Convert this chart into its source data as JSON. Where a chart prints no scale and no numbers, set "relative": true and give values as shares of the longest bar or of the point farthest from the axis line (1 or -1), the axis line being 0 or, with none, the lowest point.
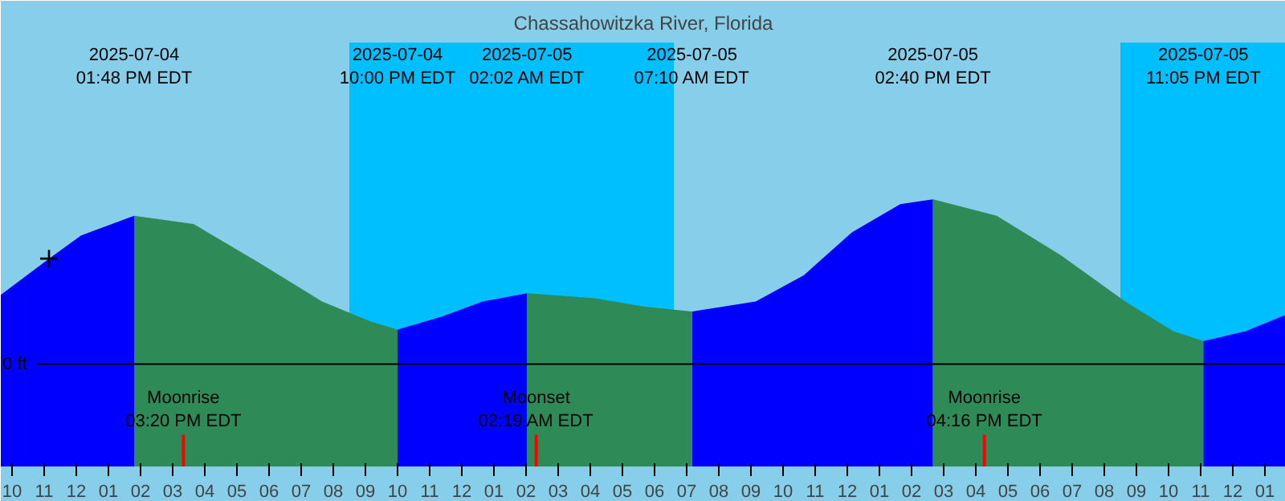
{
  "chart_data": {
    "type": "area",
    "title": "Chassahowitzka River, Florida",
    "relative": true,
    "grid": false,
    "xlim": [
      "2025-07-04T09:39",
      "2025-07-06T01:39"
    ],
    "xticks": [
      {
        "value": "2025-07-04T10:00",
        "label": "10"
      },
      {
        "value": "2025-07-04T11:00",
        "label": "11"
      },
      {
        "value": "2025-07-04T12:00",
        "label": "12"
      },
      {
        "value": "2025-07-04T13:00",
        "label": "01"
      },
      {
        "value": "2025-07-04T14:00",
        "label": "02"
      },
      {
        "value": "2025-07-04T15:00",
        "label": "03"
      },
      {
        "value": "2025-07-04T16:00",
        "label": "04"
      },
      {
        "value": "2025-07-04T17:00",
        "label": "05"
      },
      {
        "value": "2025-07-04T18:00",
        "label": "06"
      },
      {
        "value": "2025-07-04T19:00",
        "label": "07"
      },
      {
        "value": "2025-07-04T20:00",
        "label": "08"
      },
      {
        "value": "2025-07-04T21:00",
        "label": "09"
      },
      {
        "value": "2025-07-04T22:00",
        "label": "10"
      },
      {
        "value": "2025-07-04T23:00",
        "label": "11"
      },
      {
        "value": "2025-07-05T00:00",
        "label": "12"
      },
      {
        "value": "2025-07-05T01:00",
        "label": "01"
      },
      {
        "value": "2025-07-05T02:00",
        "label": "02"
      },
      {
        "value": "2025-07-05T03:00",
        "label": "03"
      },
      {
        "value": "2025-07-05T04:00",
        "label": "04"
      },
      {
        "value": "2025-07-05T05:00",
        "label": "05"
      },
      {
        "value": "2025-07-05T06:00",
        "label": "06"
      },
      {
        "value": "2025-07-05T07:00",
        "label": "07"
      },
      {
        "value": "2025-07-05T08:00",
        "label": "08"
      },
      {
        "value": "2025-07-05T09:00",
        "label": "09"
      },
      {
        "value": "2025-07-05T10:00",
        "label": "10"
      },
      {
        "value": "2025-07-05T11:00",
        "label": "11"
      },
      {
        "value": "2025-07-05T12:00",
        "label": "12"
      },
      {
        "value": "2025-07-05T13:00",
        "label": "01"
      },
      {
        "value": "2025-07-05T14:00",
        "label": "02"
      },
      {
        "value": "2025-07-05T15:00",
        "label": "03"
      },
      {
        "value": "2025-07-05T16:00",
        "label": "04"
      },
      {
        "value": "2025-07-05T17:00",
        "label": "05"
      },
      {
        "value": "2025-07-05T18:00",
        "label": "06"
      },
      {
        "value": "2025-07-05T19:00",
        "label": "07"
      },
      {
        "value": "2025-07-05T20:00",
        "label": "08"
      },
      {
        "value": "2025-07-05T21:00",
        "label": "09"
      },
      {
        "value": "2025-07-05T22:00",
        "label": "10"
      },
      {
        "value": "2025-07-05T23:00",
        "label": "11"
      },
      {
        "value": "2025-07-06T00:00",
        "label": "12"
      },
      {
        "value": "2025-07-06T01:00",
        "label": "01"
      }
    ],
    "x": [
      "2025-07-04T09:39",
      "2025-07-04T11:09",
      "2025-07-04T12:09",
      "2025-07-04T13:48",
      "2025-07-04T15:39",
      "2025-07-04T17:39",
      "2025-07-04T19:39",
      "2025-07-04T21:09",
      "2025-07-04T22:00",
      "2025-07-04T23:24",
      "2025-07-05T00:39",
      "2025-07-05T02:02",
      "2025-07-05T04:09",
      "2025-07-05T05:39",
      "2025-07-05T07:10",
      "2025-07-05T09:09",
      "2025-07-05T10:39",
      "2025-07-05T12:09",
      "2025-07-05T13:39",
      "2025-07-05T14:40",
      "2025-07-05T16:39",
      "2025-07-05T18:39",
      "2025-07-05T20:39",
      "2025-07-05T22:09",
      "2025-07-05T23:05",
      "2025-07-06T00:24",
      "2025-07-06T01:39"
    ],
    "series": [
      {
        "color": "#0000ff",
        "values": [
          0.42,
          0.64,
          0.78,
          0.9,
          null,
          null,
          null,
          null,
          0.21,
          0.29,
          0.38,
          0.43,
          null,
          null,
          0.32,
          0.38,
          0.54,
          0.8,
          0.97,
          1.0,
          null,
          null,
          null,
          null,
          0.14,
          0.2,
          0.3
        ]
      },
      {
        "color": "#2e8b57",
        "values": [
          null,
          null,
          null,
          0.9,
          0.85,
          0.62,
          0.38,
          0.26,
          0.21,
          null,
          null,
          0.43,
          0.4,
          0.35,
          0.32,
          null,
          null,
          null,
          null,
          1.0,
          0.9,
          0.66,
          0.38,
          0.2,
          0.14,
          null,
          null
        ]
      },
      {
        "type": "scatter",
        "marker": "cross",
        "color": "#000000",
        "x": [
          "2025-07-04T11:09"
        ],
        "values": [
          0.64
        ]
      }
    ],
    "bands": [
      {
        "axis": "x",
        "from": "2025-07-04T20:30",
        "to": "2025-07-05T06:36",
        "color": "#00bfff"
      },
      {
        "axis": "x",
        "from": "2025-07-05T20:30",
        "to": "2025-07-06T01:39",
        "color": "#00bfff"
      }
    ],
    "ref_lines": [
      {
        "axis": "y",
        "value": 0,
        "label": "0 ft",
        "color": "#000000"
      },
      {
        "axis": "x",
        "value": "2025-07-04T15:20",
        "label": "Moonrise\n03:20 PM EDT",
        "color": "#ff0000"
      },
      {
        "axis": "x",
        "value": "2025-07-05T02:19",
        "label": "Moonset\n02:19 AM EDT",
        "color": "#ff0000"
      },
      {
        "axis": "x",
        "value": "2025-07-05T16:16",
        "label": "Moonrise\n04:16 PM EDT",
        "color": "#ff0000"
      }
    ],
    "annotations": [
      "2025-07-04\n01:48 PM EDT",
      "2025-07-04\n10:00 PM EDT",
      "2025-07-05\n02:02 AM EDT",
      "2025-07-05\n07:10 AM EDT",
      "2025-07-05\n02:40 PM EDT",
      "2025-07-05\n11:05 PM EDT"
    ]
  }
}
